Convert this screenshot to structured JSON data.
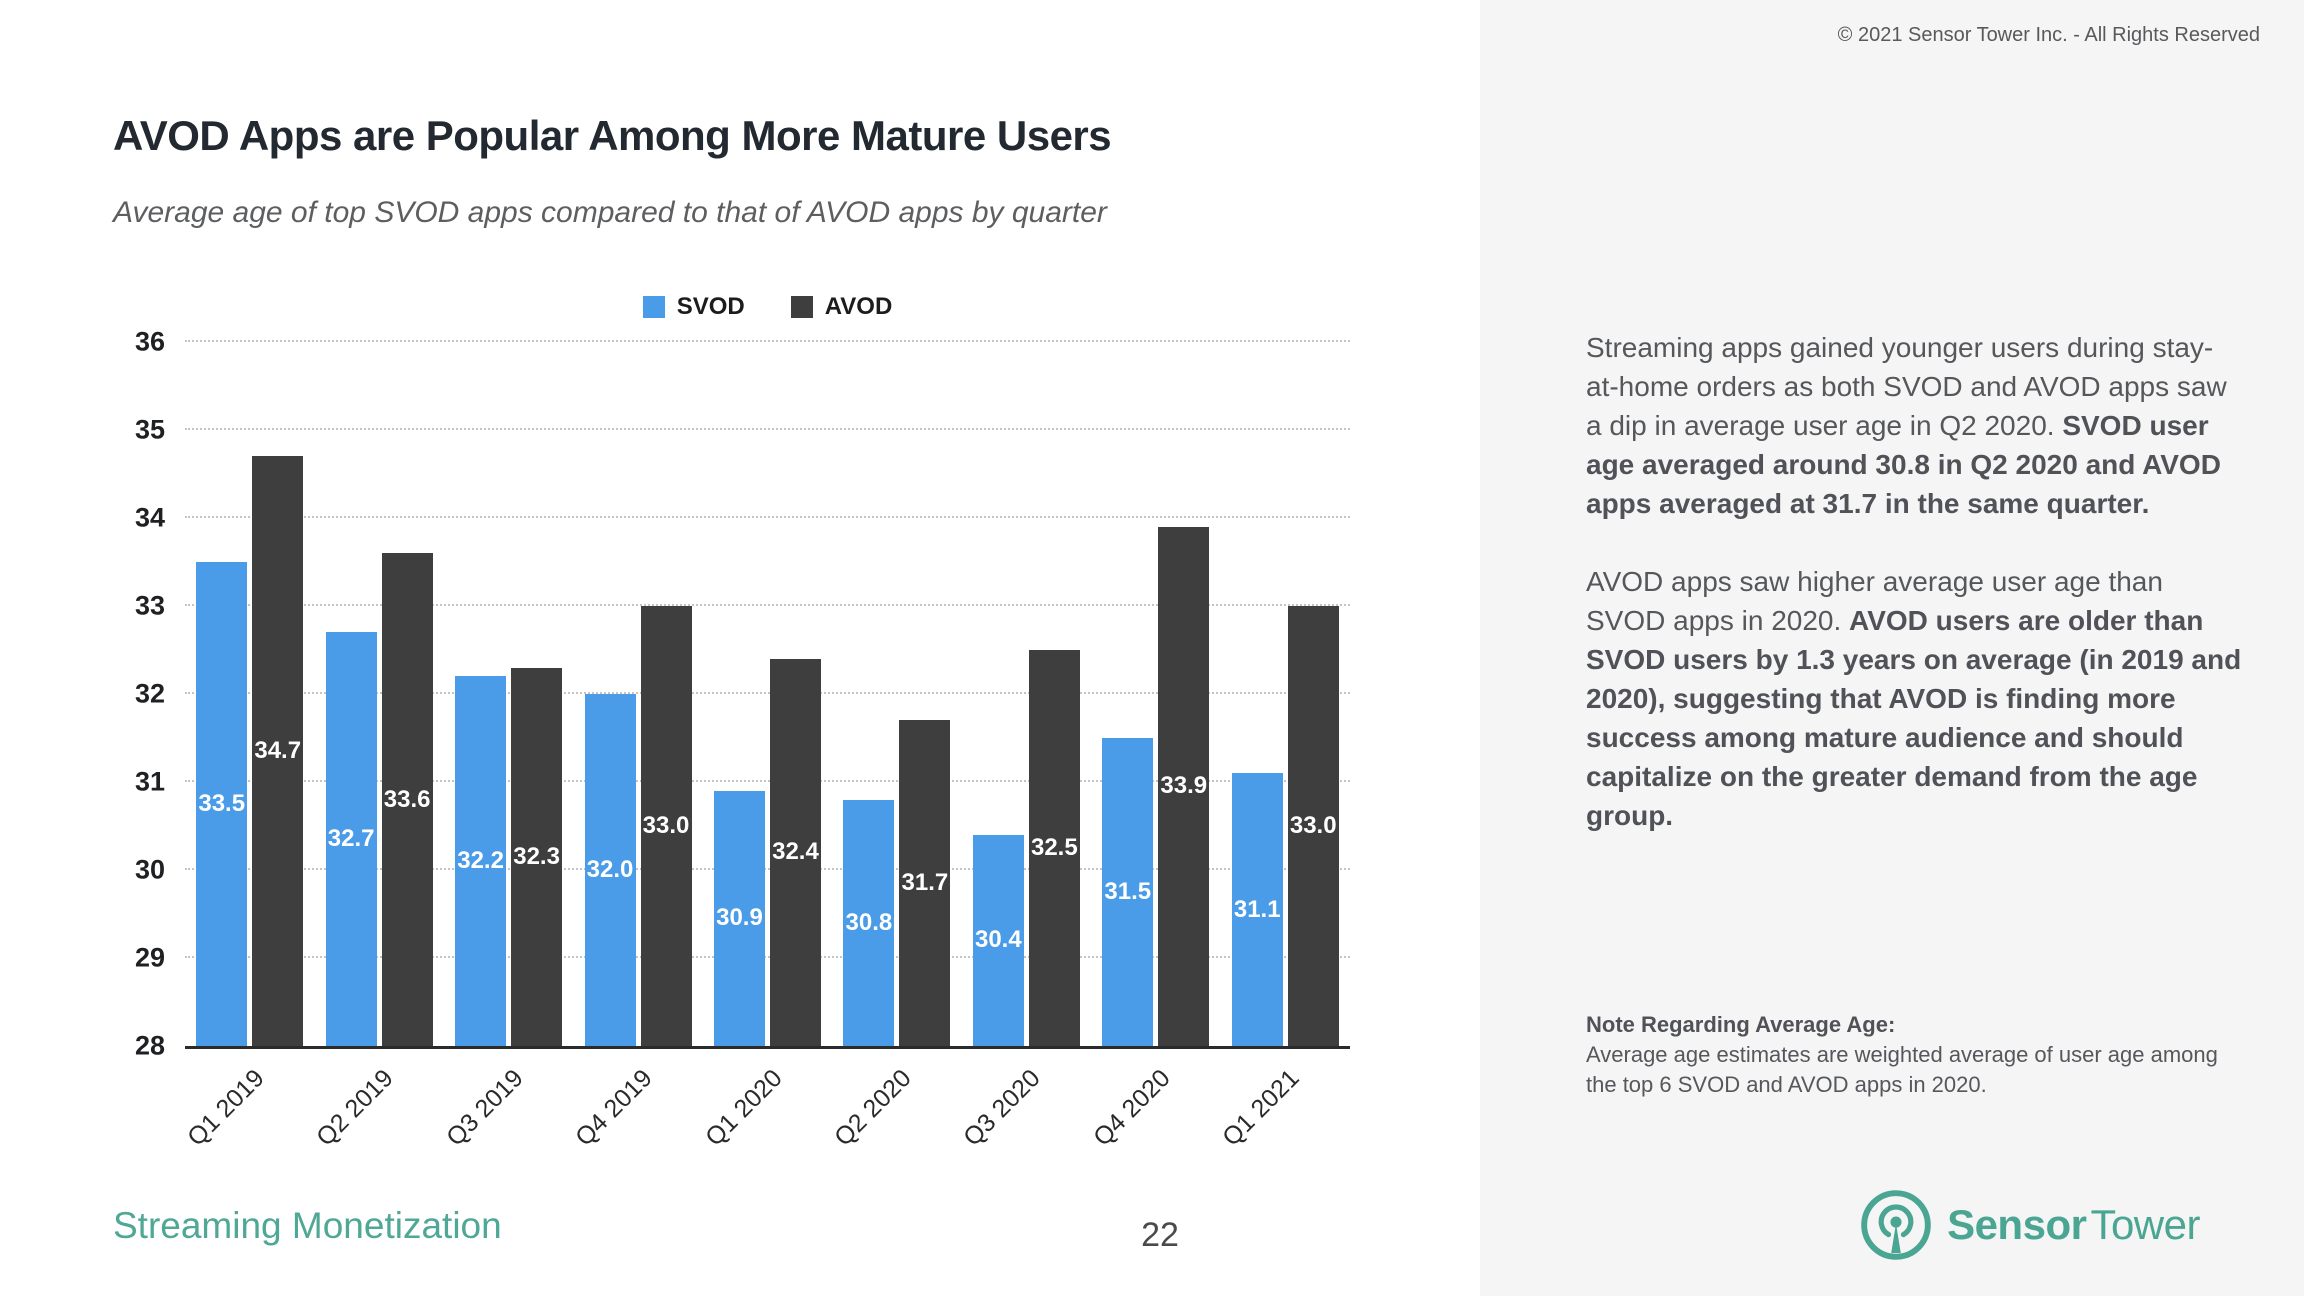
{
  "page": {
    "copyright": "© 2021 Sensor Tower Inc. - All Rights Reserved",
    "title": "AVOD Apps are Popular Among More Mature Users",
    "subtitle": "Average age of top SVOD apps compared to that of AVOD apps by quarter",
    "footer_label": "Streaming Monetization",
    "page_number": "22",
    "brand": {
      "name_bold": "Sensor",
      "name_regular": "Tower",
      "teal": "#4AA592"
    }
  },
  "chart_data": {
    "type": "bar",
    "title": "",
    "xlabel": "",
    "ylabel": "",
    "categories": [
      "Q1 2019",
      "Q2 2019",
      "Q3 2019",
      "Q4 2019",
      "Q1 2020",
      "Q2 2020",
      "Q3 2020",
      "Q4 2020",
      "Q1 2021"
    ],
    "series": [
      {
        "name": "SVOD",
        "color": "#4A9CE8",
        "values": [
          33.5,
          32.7,
          32.2,
          32.0,
          30.9,
          30.8,
          30.4,
          31.5,
          31.1
        ]
      },
      {
        "name": "AVOD",
        "color": "#3E3E3E",
        "values": [
          34.7,
          33.6,
          32.3,
          33.0,
          32.4,
          31.7,
          32.5,
          33.9,
          33.0
        ]
      }
    ],
    "ylim": [
      28,
      36
    ],
    "yticks": [
      28,
      29,
      30,
      31,
      32,
      33,
      34,
      35,
      36
    ],
    "grid": "horizontal-dotted",
    "legend_position": "top-center",
    "value_labels": "inside-bars, one decimal"
  },
  "right_panel": {
    "paragraphs": [
      {
        "normal": "Streaming apps gained younger users during stay-at-home orders as both SVOD and AVOD apps saw a dip in average user age in Q2 2020. ",
        "bold": "SVOD user age averaged around 30.8 in Q2 2020 and AVOD apps averaged at 31.7 in the same quarter."
      },
      {
        "normal": "AVOD apps saw higher average user age than SVOD apps in 2020. ",
        "bold": "AVOD users are older than SVOD users by 1.3 years on average (in 2019 and 2020), suggesting that AVOD is finding more success among mature audience and should capitalize on the greater demand from the age group."
      }
    ],
    "note_title": "Note Regarding Average Age:",
    "note_body": "Average age estimates are weighted average of user age among the top 6 SVOD and AVOD apps in 2020."
  }
}
